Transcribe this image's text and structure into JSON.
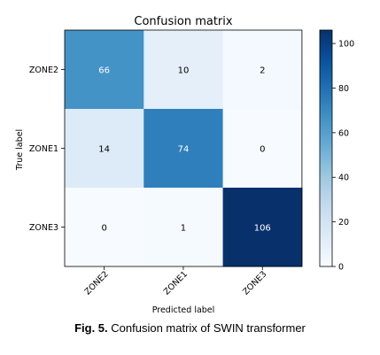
{
  "chart_data": {
    "type": "heatmap",
    "title": "Confusion matrix",
    "xlabel": "Predicted label",
    "ylabel": "True label",
    "x_categories": [
      "ZONE2",
      "ZONE1",
      "ZONE3"
    ],
    "y_categories": [
      "ZONE2",
      "ZONE1",
      "ZONE3"
    ],
    "values": [
      [
        66,
        10,
        2
      ],
      [
        14,
        74,
        0
      ],
      [
        0,
        1,
        106
      ]
    ],
    "colormap": "Blues",
    "colorbar": {
      "min": 0,
      "max": 106,
      "ticks": [
        0,
        20,
        40,
        60,
        80,
        100
      ]
    },
    "grid": false
  },
  "caption": {
    "label": "Fig. 5.",
    "text": " Confusion matrix of SWIN transformer"
  }
}
